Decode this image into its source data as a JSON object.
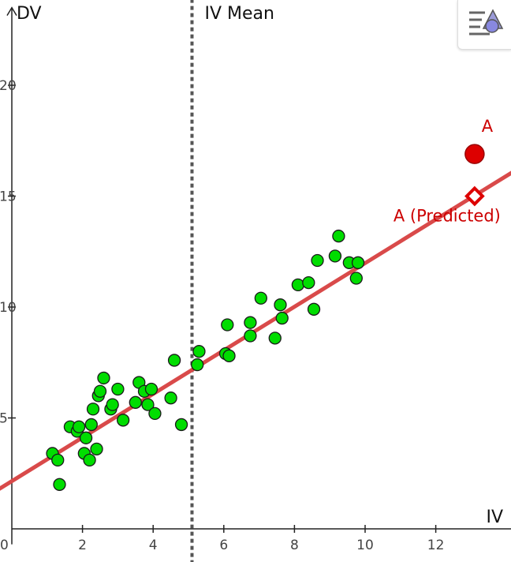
{
  "chart_data": {
    "type": "scatter",
    "xlabel": "IV",
    "ylabel": "DV",
    "xlim": [
      0,
      14.6
    ],
    "ylim": [
      -0.7,
      23.5
    ],
    "x_ticks": [
      0,
      2,
      4,
      6,
      8,
      10,
      12
    ],
    "y_ticks": [
      5,
      10,
      15,
      20
    ],
    "points": [
      [
        1.15,
        3.4
      ],
      [
        1.3,
        3.1
      ],
      [
        1.35,
        2.0
      ],
      [
        1.65,
        4.6
      ],
      [
        1.85,
        4.4
      ],
      [
        1.9,
        4.6
      ],
      [
        2.05,
        3.4
      ],
      [
        2.1,
        4.1
      ],
      [
        2.2,
        3.1
      ],
      [
        2.25,
        4.7
      ],
      [
        2.3,
        5.4
      ],
      [
        2.4,
        3.6
      ],
      [
        2.45,
        6.0
      ],
      [
        2.5,
        6.2
      ],
      [
        2.6,
        6.8
      ],
      [
        2.8,
        5.4
      ],
      [
        2.85,
        5.6
      ],
      [
        3.0,
        6.3
      ],
      [
        3.15,
        4.9
      ],
      [
        3.5,
        5.7
      ],
      [
        3.6,
        6.6
      ],
      [
        3.75,
        6.2
      ],
      [
        3.85,
        5.6
      ],
      [
        3.95,
        6.3
      ],
      [
        4.05,
        5.2
      ],
      [
        4.5,
        5.9
      ],
      [
        4.6,
        7.6
      ],
      [
        4.8,
        4.7
      ],
      [
        5.25,
        7.4
      ],
      [
        5.3,
        8.0
      ],
      [
        6.05,
        7.9
      ],
      [
        6.1,
        9.2
      ],
      [
        6.15,
        7.8
      ],
      [
        6.75,
        8.7
      ],
      [
        6.75,
        9.3
      ],
      [
        7.05,
        10.4
      ],
      [
        7.45,
        8.6
      ],
      [
        7.6,
        10.1
      ],
      [
        7.65,
        9.5
      ],
      [
        8.1,
        11.0
      ],
      [
        8.4,
        11.1
      ],
      [
        8.55,
        9.9
      ],
      [
        8.65,
        12.1
      ],
      [
        9.15,
        12.3
      ],
      [
        9.25,
        13.2
      ],
      [
        9.55,
        12.0
      ],
      [
        9.75,
        11.3
      ],
      [
        9.8,
        12.0
      ]
    ],
    "regression": {
      "intercept": 2.15,
      "slope": 0.983
    },
    "iv_mean": 5.1,
    "iv_mean_label": "IV Mean",
    "point_A": {
      "label": "A",
      "x": 13.1,
      "y": 16.9
    },
    "point_A_predicted": {
      "label": "A (Predicted)",
      "x": 13.1,
      "y": 15.0
    },
    "grid": false,
    "colors": {
      "points": "#00dd00",
      "point_outline": "#1a1a1a",
      "regression": "#d94a4a",
      "highlight": "#dd0000",
      "mean_line": "#555555"
    }
  },
  "toolbar": {
    "style_icon": "graphics-style-icon"
  }
}
